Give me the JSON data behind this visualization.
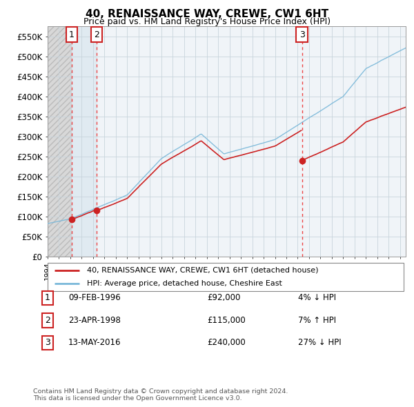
{
  "title": "40, RENAISSANCE WAY, CREWE, CW1 6HT",
  "subtitle": "Price paid vs. HM Land Registry's House Price Index (HPI)",
  "ylabel_ticks": [
    "£0",
    "£50K",
    "£100K",
    "£150K",
    "£200K",
    "£250K",
    "£300K",
    "£350K",
    "£400K",
    "£450K",
    "£500K",
    "£550K"
  ],
  "ytick_values": [
    0,
    50000,
    100000,
    150000,
    200000,
    250000,
    300000,
    350000,
    400000,
    450000,
    500000,
    550000
  ],
  "ylim": [
    0,
    575000
  ],
  "xlim_start": 1994.0,
  "xlim_end": 2025.5,
  "purchases": [
    {
      "id": 1,
      "date": "09-FEB-1996",
      "year": 1996.12,
      "price": 92000,
      "pct": "4%",
      "dir": "↓"
    },
    {
      "id": 2,
      "date": "23-APR-1998",
      "year": 1998.31,
      "price": 115000,
      "pct": "7%",
      "dir": "↑"
    },
    {
      "id": 3,
      "date": "13-MAY-2016",
      "year": 2016.37,
      "price": 240000,
      "pct": "27%",
      "dir": "↓"
    }
  ],
  "legend_label_red": "40, RENAISSANCE WAY, CREWE, CW1 6HT (detached house)",
  "legend_label_blue": "HPI: Average price, detached house, Cheshire East",
  "footer": "Contains HM Land Registry data © Crown copyright and database right 2024.\nThis data is licensed under the Open Government Licence v3.0.",
  "hpi_color": "#7ab8d9",
  "price_color": "#cc2222",
  "background_plot": "#f0f4f8",
  "grid_color": "#d0d8e0",
  "vline_color": "#ee4444",
  "hatch_color": "#c8c8c8",
  "highlight_color": "#dde8f0"
}
